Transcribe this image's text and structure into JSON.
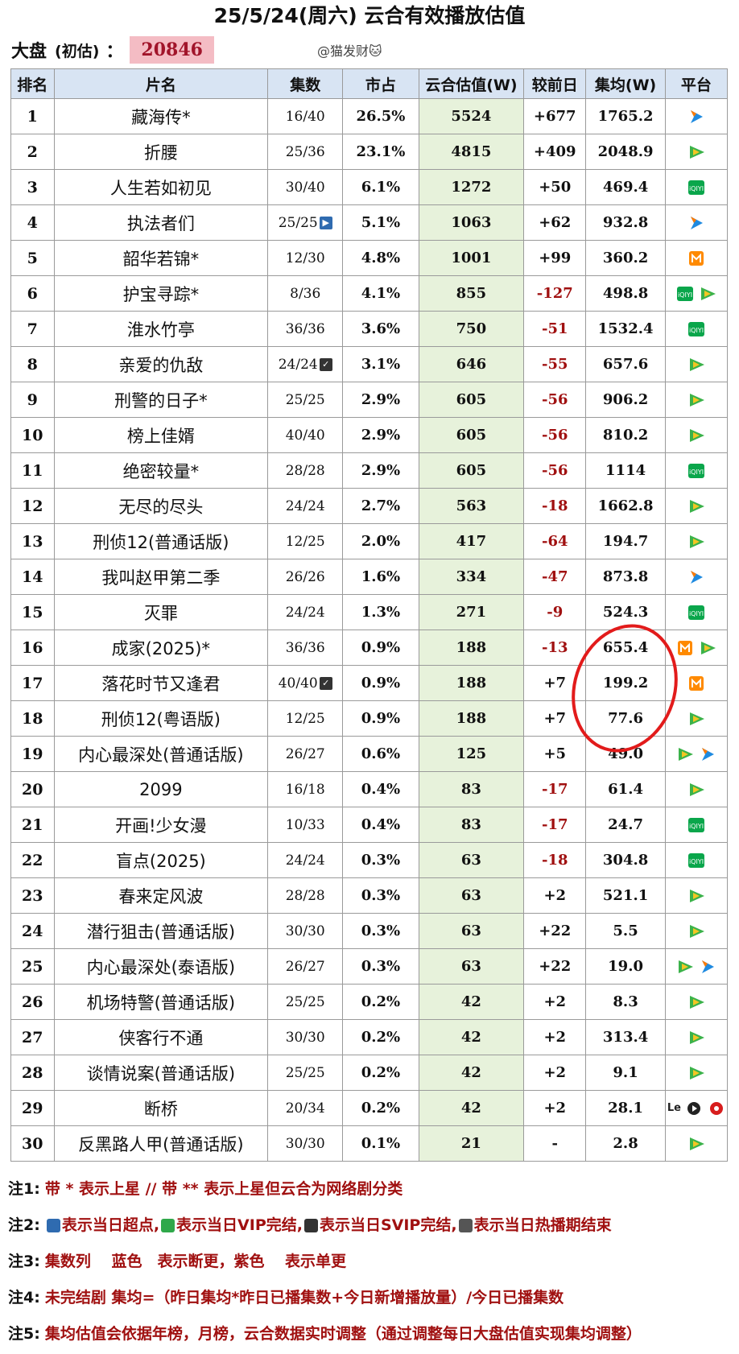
{
  "header": {
    "title": "25/5/24(周六) 云合有效播放估值",
    "market_label": "大盘",
    "market_sub": "(初估)",
    "market_colon": "：",
    "market_value": "20846",
    "author": "@猫发财🐱"
  },
  "table": {
    "headers": [
      "排名",
      "片名",
      "集数",
      "市占",
      "云合估值(W)",
      "较前日",
      "集均(W)",
      "平台"
    ],
    "rows": [
      {
        "rank": "1",
        "name": "藏海传*",
        "eps": "16/40",
        "share": "26.5%",
        "est": "5524",
        "delta": "+677",
        "avg": "1765.2",
        "platforms": [
          "youku"
        ]
      },
      {
        "rank": "2",
        "name": "折腰",
        "eps": "25/36",
        "share": "23.1%",
        "est": "4815",
        "delta": "+409",
        "avg": "2048.9",
        "platforms": [
          "tencent"
        ]
      },
      {
        "rank": "3",
        "name": "人生若如初见",
        "eps": "30/40",
        "share": "6.1%",
        "est": "1272",
        "delta": "+50",
        "avg": "469.4",
        "platforms": [
          "iqiyi"
        ]
      },
      {
        "rank": "4",
        "name": "执法者们",
        "eps": "25/25",
        "eps_badge": "super",
        "share": "5.1%",
        "est": "1063",
        "delta": "+62",
        "avg": "932.8",
        "platforms": [
          "youku"
        ]
      },
      {
        "rank": "5",
        "name": "韶华若锦*",
        "eps": "12/30",
        "share": "4.8%",
        "est": "1001",
        "delta": "+99",
        "avg": "360.2",
        "platforms": [
          "mango"
        ]
      },
      {
        "rank": "6",
        "name": "护宝寻踪*",
        "eps": "8/36",
        "share": "4.1%",
        "est": "855",
        "delta": "-127",
        "avg": "498.8",
        "platforms": [
          "iqiyi",
          "tencent"
        ]
      },
      {
        "rank": "7",
        "name": "淮水竹亭",
        "eps": "36/36",
        "share": "3.6%",
        "est": "750",
        "delta": "-51",
        "avg": "1532.4",
        "platforms": [
          "iqiyi"
        ]
      },
      {
        "rank": "8",
        "name": "亲爱的仇敌",
        "eps": "24/24",
        "eps_badge": "svip",
        "share": "3.1%",
        "est": "646",
        "delta": "-55",
        "avg": "657.6",
        "platforms": [
          "tencent"
        ]
      },
      {
        "rank": "9",
        "name": "刑警的日子*",
        "eps": "25/25",
        "share": "2.9%",
        "est": "605",
        "delta": "-56",
        "avg": "906.2",
        "platforms": [
          "tencent"
        ]
      },
      {
        "rank": "10",
        "name": "榜上佳婿",
        "eps": "40/40",
        "share": "2.9%",
        "est": "605",
        "delta": "-56",
        "avg": "810.2",
        "platforms": [
          "tencent"
        ]
      },
      {
        "rank": "11",
        "name": "绝密较量*",
        "eps": "28/28",
        "share": "2.9%",
        "est": "605",
        "delta": "-56",
        "avg": "1114",
        "platforms": [
          "iqiyi"
        ]
      },
      {
        "rank": "12",
        "name": "无尽的尽头",
        "eps": "24/24",
        "share": "2.7%",
        "est": "563",
        "delta": "-18",
        "avg": "1662.8",
        "platforms": [
          "tencent"
        ]
      },
      {
        "rank": "13",
        "name": "刑侦12(普通话版)",
        "eps": "12/25",
        "share": "2.0%",
        "est": "417",
        "delta": "-64",
        "avg": "194.7",
        "platforms": [
          "tencent"
        ]
      },
      {
        "rank": "14",
        "name": "我叫赵甲第二季",
        "eps": "26/26",
        "share": "1.6%",
        "est": "334",
        "delta": "-47",
        "avg": "873.8",
        "platforms": [
          "youku"
        ]
      },
      {
        "rank": "15",
        "name": "灭罪",
        "eps": "24/24",
        "share": "1.3%",
        "est": "271",
        "delta": "-9",
        "avg": "524.3",
        "platforms": [
          "iqiyi"
        ]
      },
      {
        "rank": "16",
        "name": "成家(2025)*",
        "eps": "36/36",
        "share": "0.9%",
        "est": "188",
        "delta": "-13",
        "avg": "655.4",
        "platforms": [
          "mango",
          "tencent"
        ]
      },
      {
        "rank": "17",
        "name": "落花时节又逢君",
        "eps": "40/40",
        "eps_badge": "svip",
        "share": "0.9%",
        "est": "188",
        "delta": "+7",
        "avg": "199.2",
        "platforms": [
          "mango"
        ]
      },
      {
        "rank": "18",
        "name": "刑侦12(粤语版)",
        "eps": "12/25",
        "share": "0.9%",
        "est": "188",
        "delta": "+7",
        "avg": "77.6",
        "platforms": [
          "tencent"
        ]
      },
      {
        "rank": "19",
        "name": "内心最深处(普通话版)",
        "eps": "26/27",
        "share": "0.6%",
        "est": "125",
        "delta": "+5",
        "avg": "49.0",
        "platforms": [
          "tencent",
          "youku"
        ]
      },
      {
        "rank": "20",
        "name": "2099",
        "eps": "16/18",
        "share": "0.4%",
        "est": "83",
        "delta": "-17",
        "avg": "61.4",
        "platforms": [
          "tencent"
        ]
      },
      {
        "rank": "21",
        "name": "开画!少女漫",
        "eps": "10/33",
        "share": "0.4%",
        "est": "83",
        "delta": "-17",
        "avg": "24.7",
        "platforms": [
          "iqiyi"
        ]
      },
      {
        "rank": "22",
        "name": "盲点(2025)",
        "eps": "24/24",
        "share": "0.3%",
        "est": "63",
        "delta": "-18",
        "avg": "304.8",
        "platforms": [
          "iqiyi"
        ]
      },
      {
        "rank": "23",
        "name": "春来定风波",
        "eps": "28/28",
        "share": "0.3%",
        "est": "63",
        "delta": "+2",
        "avg": "521.1",
        "platforms": [
          "tencent"
        ]
      },
      {
        "rank": "24",
        "name": "潜行狙击(普通话版)",
        "eps": "30/30",
        "share": "0.3%",
        "est": "63",
        "delta": "+22",
        "avg": "5.5",
        "platforms": [
          "tencent"
        ]
      },
      {
        "rank": "25",
        "name": "内心最深处(泰语版)",
        "eps": "26/27",
        "share": "0.3%",
        "est": "63",
        "delta": "+22",
        "avg": "19.0",
        "platforms": [
          "tencent",
          "youku"
        ]
      },
      {
        "rank": "26",
        "name": "机场特警(普通话版)",
        "eps": "25/25",
        "share": "0.2%",
        "est": "42",
        "delta": "+2",
        "avg": "8.3",
        "platforms": [
          "tencent"
        ]
      },
      {
        "rank": "27",
        "name": "侠客行不通",
        "eps": "30/30",
        "share": "0.2%",
        "est": "42",
        "delta": "+2",
        "avg": "313.4",
        "platforms": [
          "tencent"
        ]
      },
      {
        "rank": "28",
        "name": "谈情说案(普通话版)",
        "eps": "25/25",
        "share": "0.2%",
        "est": "42",
        "delta": "+2",
        "avg": "9.1",
        "platforms": [
          "tencent"
        ]
      },
      {
        "rank": "29",
        "name": "断桥",
        "eps": "20/34",
        "share": "0.2%",
        "est": "42",
        "delta": "+2",
        "avg": "28.1",
        "platforms": [
          "le",
          "le-play",
          "le-rec"
        ]
      },
      {
        "rank": "30",
        "name": "反黑路人甲(普通话版)",
        "eps": "30/30",
        "share": "0.1%",
        "est": "21",
        "delta": "-",
        "avg": "2.8",
        "platforms": [
          "tencent"
        ]
      }
    ]
  },
  "platform_text": {
    "le": "Le"
  },
  "notes": [
    {
      "label": "注1:",
      "text": "带 * 表示上星 // 带 ** 表示上星但云合为网络剧分类"
    },
    {
      "label": "注2:",
      "parts": [
        "表示当日超点,",
        "表示当日VIP完结,",
        "表示当日SVIP完结,",
        "表示当日热播期结束"
      ]
    },
    {
      "label": "注3:",
      "text": "集数列　 蓝色　表示断更，紫色　 表示单更"
    },
    {
      "label": "注4:",
      "text": "未完结剧 集均=（昨日集均*昨日已播集数+今日新增播放量）/今日已播集数"
    },
    {
      "label": "注5:",
      "text": "集均估值会依据年榜，月榜，云合数据实时调整（通过调整每日大盘估值实现集均调整）"
    }
  ],
  "colors": {
    "negative": "#a01010",
    "header_bg": "#d8e4f3",
    "est_bg": "#e7f2db",
    "highlight_circle": "#e21b1b",
    "tencent": "#3bb24a",
    "youku": "#1f8ae0",
    "iqiyi": "#0aa64b",
    "mango": "#ff8a00"
  }
}
